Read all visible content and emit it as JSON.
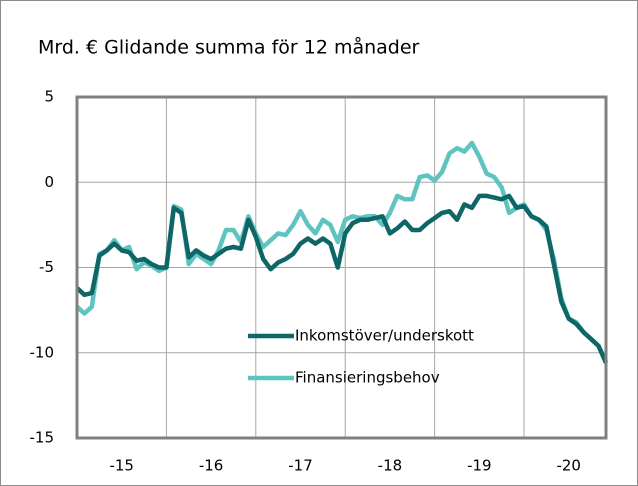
{
  "chart_data": {
    "type": "line",
    "title": "Mrd. € Glidande  summa för 12 månader",
    "x": [
      2015,
      2015.083,
      2015.167,
      2015.25,
      2015.333,
      2015.417,
      2015.5,
      2015.583,
      2015.667,
      2015.75,
      2015.833,
      2015.917,
      2016,
      2016.083,
      2016.167,
      2016.25,
      2016.333,
      2016.417,
      2016.5,
      2016.583,
      2016.667,
      2016.75,
      2016.833,
      2016.917,
      2017,
      2017.083,
      2017.167,
      2017.25,
      2017.333,
      2017.417,
      2017.5,
      2017.583,
      2017.667,
      2017.75,
      2017.833,
      2017.917,
      2018,
      2018.083,
      2018.167,
      2018.25,
      2018.333,
      2018.417,
      2018.5,
      2018.583,
      2018.667,
      2018.75,
      2018.833,
      2018.917,
      2019,
      2019.083,
      2019.167,
      2019.25,
      2019.333,
      2019.417,
      2019.5,
      2019.583,
      2019.667,
      2019.75,
      2019.833,
      2019.917,
      2020,
      2020.083,
      2020.167,
      2020.25,
      2020.333,
      2020.417,
      2020.5,
      2020.583,
      2020.667,
      2020.75,
      2020.833,
      2020.917
    ],
    "series": [
      {
        "name": "Inkomstöver/underskott",
        "color": "#0e6666",
        "values": [
          -6.2,
          -6.6,
          -6.5,
          -4.3,
          -4.0,
          -3.6,
          -4.0,
          -4.1,
          -4.6,
          -4.5,
          -4.8,
          -5.0,
          -5.0,
          -1.5,
          -1.8,
          -4.4,
          -4.0,
          -4.3,
          -4.5,
          -4.2,
          -3.9,
          -3.8,
          -3.9,
          -2.2,
          -3.2,
          -4.5,
          -5.1,
          -4.7,
          -4.5,
          -4.2,
          -3.6,
          -3.3,
          -3.6,
          -3.3,
          -3.6,
          -5.0,
          -3.0,
          -2.4,
          -2.2,
          -2.2,
          -2.1,
          -2.0,
          -3.0,
          -2.7,
          -2.3,
          -2.8,
          -2.8,
          -2.4,
          -2.1,
          -1.8,
          -1.7,
          -2.2,
          -1.3,
          -1.5,
          -0.8,
          -0.8,
          -0.9,
          -1.0,
          -0.8,
          -1.5,
          -1.4,
          -2.0,
          -2.2,
          -2.6,
          -4.8,
          -7.0,
          -8.0,
          -8.3,
          -8.8,
          -9.2,
          -9.6,
          -10.6
        ]
      },
      {
        "name": "Finansieringsbehov",
        "color": "#5fc4bf",
        "values": [
          -7.3,
          -7.7,
          -7.3,
          -4.2,
          -4.0,
          -3.4,
          -4.0,
          -3.8,
          -5.1,
          -4.7,
          -4.9,
          -5.2,
          -5.0,
          -1.4,
          -1.6,
          -4.8,
          -4.2,
          -4.5,
          -4.8,
          -4.0,
          -2.8,
          -2.8,
          -3.5,
          -2.0,
          -3.0,
          -3.8,
          -3.4,
          -3.0,
          -3.1,
          -2.5,
          -1.7,
          -2.5,
          -3.0,
          -2.2,
          -2.5,
          -3.5,
          -2.2,
          -2.0,
          -2.1,
          -2.0,
          -2.0,
          -2.5,
          -1.8,
          -0.8,
          -1.0,
          -1.0,
          0.3,
          0.4,
          0.1,
          0.6,
          1.7,
          2.0,
          1.8,
          2.3,
          1.5,
          0.5,
          0.3,
          -0.3,
          -1.8,
          -1.5,
          -1.3,
          -2.0,
          -2.2,
          -2.8,
          -4.5,
          -6.8,
          -8.0,
          -8.2,
          -8.8,
          -9.2,
          -9.6,
          -10.5
        ]
      }
    ],
    "xlim": [
      2015,
      2020.917
    ],
    "xticks": [
      {
        "value": 2015.5,
        "label": "-15"
      },
      {
        "value": 2016.5,
        "label": "-16"
      },
      {
        "value": 2017.5,
        "label": "-17"
      },
      {
        "value": 2018.5,
        "label": "-18"
      },
      {
        "value": 2019.5,
        "label": "-19"
      },
      {
        "value": 2020.5,
        "label": "-20"
      }
    ],
    "ylim": [
      -15,
      5
    ],
    "yticks": [
      5,
      0,
      -5,
      -10,
      -15
    ],
    "grid": true
  }
}
